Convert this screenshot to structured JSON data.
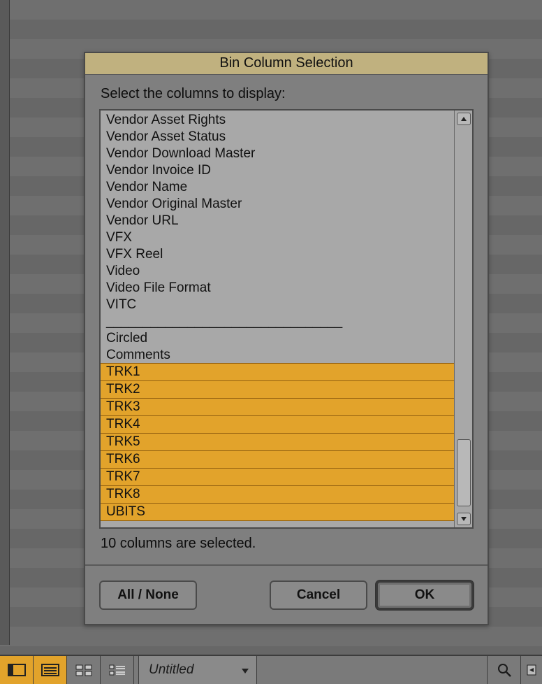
{
  "colors": {
    "title_bar": "#c0b17f",
    "selection": "#e2a32b",
    "dialog_bg": "#7f7f7f",
    "list_bg": "#a8a8a8",
    "border_dark": "#4a4a4a",
    "text": "#111111"
  },
  "dialog": {
    "title": "Bin Column Selection",
    "instruction": "Select the columns to display:",
    "status": "10 columns are selected.",
    "buttons": {
      "all_none": "All / None",
      "cancel": "Cancel",
      "ok": "OK"
    },
    "items": [
      {
        "label": "Vendor Asset Rights",
        "selected": false
      },
      {
        "label": "Vendor Asset Status",
        "selected": false
      },
      {
        "label": "Vendor Download Master",
        "selected": false
      },
      {
        "label": "Vendor Invoice ID",
        "selected": false
      },
      {
        "label": "Vendor Name",
        "selected": false
      },
      {
        "label": "Vendor Original Master",
        "selected": false
      },
      {
        "label": "Vendor URL",
        "selected": false
      },
      {
        "label": "VFX",
        "selected": false
      },
      {
        "label": "VFX Reel",
        "selected": false
      },
      {
        "label": "Video",
        "selected": false
      },
      {
        "label": "Video File Format",
        "selected": false
      },
      {
        "label": "VITC",
        "selected": false
      },
      {
        "label": "________________________________",
        "selected": false
      },
      {
        "label": "Circled",
        "selected": false
      },
      {
        "label": "Comments",
        "selected": false
      },
      {
        "label": "TRK1",
        "selected": true
      },
      {
        "label": "TRK2",
        "selected": true
      },
      {
        "label": "TRK3",
        "selected": true
      },
      {
        "label": "TRK4",
        "selected": true
      },
      {
        "label": "TRK5",
        "selected": true
      },
      {
        "label": "TRK6",
        "selected": true
      },
      {
        "label": "TRK7",
        "selected": true
      },
      {
        "label": "TRK8",
        "selected": true
      },
      {
        "label": "UBITS",
        "selected": true
      }
    ]
  },
  "toolbar": {
    "tab_label": "Untitled",
    "view_modes": [
      {
        "name": "brief-view",
        "active": true
      },
      {
        "name": "text-view",
        "active": true
      },
      {
        "name": "frame-view",
        "active": false
      },
      {
        "name": "script-view",
        "active": false
      }
    ]
  }
}
